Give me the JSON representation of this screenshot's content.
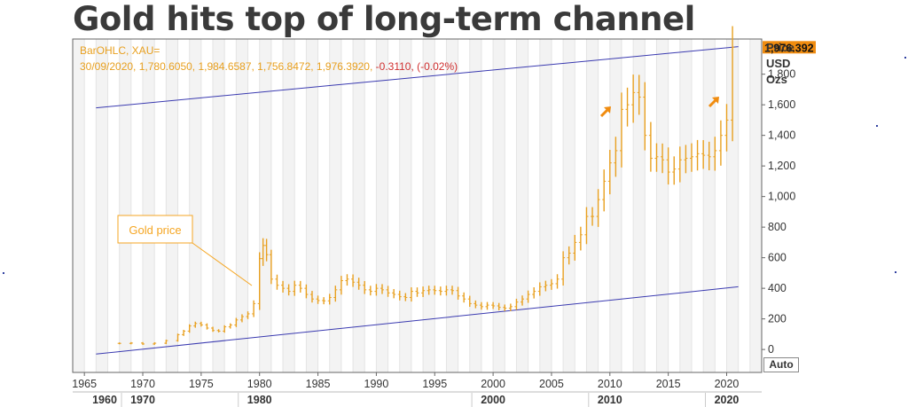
{
  "title": "Gold hits top of long-term channel",
  "info": {
    "line1": "BarOHLC, XAU=",
    "line2_main": "30/09/2020, 1,780.6050, 1,984.6587, 1,756.8472, 1,976.3920,",
    "line2_change": "-0.3110, (-0.02%)"
  },
  "axis_title": {
    "line1": "Price",
    "line2": "USD",
    "line3": "Ozs"
  },
  "last_price_label": "1,976.392",
  "auto_label": "Auto",
  "annotation_label": "Gold price",
  "colors": {
    "price": "#e8a020",
    "channel": "#3a3ab0",
    "annotation_box": "#f5a623",
    "arrow": "#f08c10",
    "negative": "#d03030"
  },
  "chart_data": {
    "type": "bar",
    "subtype": "OHLC",
    "title": "Gold hits top of long-term channel",
    "series": [
      {
        "name": "XAU=",
        "x": [
          1968,
          1969,
          1970,
          1971,
          1972,
          1973,
          1973.5,
          1974,
          1974.5,
          1975,
          1975.5,
          1976,
          1976.5,
          1977,
          1977.5,
          1978,
          1978.5,
          1979,
          1979.5,
          1980,
          1980.3,
          1980.6,
          1981,
          1981.5,
          1982,
          1982.5,
          1983,
          1983.5,
          1984,
          1984.5,
          1985,
          1985.5,
          1986,
          1986.5,
          1987,
          1987.5,
          1988,
          1988.5,
          1989,
          1989.5,
          1990,
          1990.5,
          1991,
          1991.5,
          1992,
          1992.5,
          1993,
          1993.5,
          1994,
          1994.5,
          1995,
          1995.5,
          1996,
          1996.5,
          1997,
          1997.5,
          1998,
          1998.5,
          1999,
          1999.5,
          2000,
          2000.5,
          2001,
          2001.5,
          2002,
          2002.5,
          2003,
          2003.5,
          2004,
          2004.5,
          2005,
          2005.5,
          2006,
          2006.5,
          2007,
          2007.5,
          2008,
          2008.5,
          2009,
          2009.5,
          2010,
          2010.5,
          2011,
          2011.5,
          2012,
          2012.5,
          2013,
          2013.5,
          2014,
          2014.5,
          2015,
          2015.5,
          2016,
          2016.5,
          2017,
          2017.5,
          2018,
          2018.5,
          2019,
          2019.5,
          2020,
          2020.5
        ],
        "values": [
          40,
          42,
          36,
          41,
          58,
          97,
          120,
          154,
          170,
          161,
          140,
          124,
          120,
          148,
          160,
          193,
          215,
          233,
          300,
          594,
          680,
          620,
          460,
          420,
          400,
          380,
          420,
          400,
          360,
          330,
          320,
          318,
          340,
          390,
          450,
          460,
          440,
          420,
          390,
          380,
          400,
          390,
          370,
          360,
          345,
          340,
          380,
          370,
          385,
          390,
          385,
          380,
          390,
          385,
          350,
          330,
          300,
          290,
          280,
          290,
          285,
          275,
          270,
          280,
          310,
          330,
          360,
          380,
          410,
          420,
          430,
          460,
          600,
          630,
          700,
          750,
          870,
          870,
          980,
          1100,
          1220,
          1300,
          1570,
          1600,
          1680,
          1650,
          1400,
          1250,
          1260,
          1240,
          1160,
          1180,
          1240,
          1250,
          1260,
          1280,
          1270,
          1260,
          1300,
          1400,
          1500,
          1976
        ]
      }
    ],
    "channel_lines": [
      {
        "name": "upper",
        "x": [
          1966,
          2021
        ],
        "y": [
          1580,
          1980
        ]
      },
      {
        "name": "lower",
        "x": [
          1966,
          2021
        ],
        "y": [
          -30,
          410
        ]
      }
    ],
    "x_ticks": [
      1965,
      1970,
      1975,
      1980,
      1985,
      1990,
      1995,
      2000,
      2005,
      2010,
      2015,
      2020
    ],
    "x_ticks_bottom": [
      1960,
      1970,
      1980,
      2000,
      2010,
      2020
    ],
    "y_ticks": [
      0,
      200,
      400,
      600,
      800,
      1000,
      1200,
      1400,
      1600,
      1800
    ],
    "y_tick_labels": [
      "0",
      "200",
      "400",
      "600",
      "800",
      "1,000",
      "1,200",
      "1,400",
      "1,600",
      "1,800"
    ],
    "xlim": [
      1964,
      2023
    ],
    "ylim": [
      -150,
      2030
    ],
    "grid": true,
    "legend": "none"
  }
}
